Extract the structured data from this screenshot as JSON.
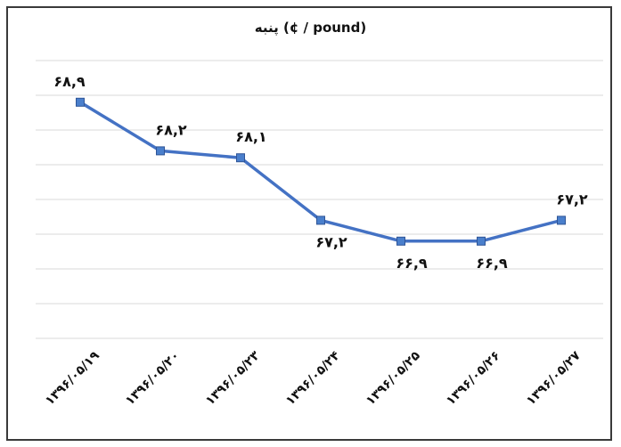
{
  "chart_data": {
    "type": "line",
    "title": "پنبه (¢ / pound)",
    "categories": [
      "۱۳۹۶/۰۵/۱۹",
      "۱۳۹۶/۰۵/۲۰",
      "۱۳۹۶/۰۵/۲۳",
      "۱۳۹۶/۰۵/۲۴",
      "۱۳۹۶/۰۵/۲۵",
      "۱۳۹۶/۰۵/۲۶",
      "۱۳۹۶/۰۵/۲۷"
    ],
    "values": [
      68.9,
      68.2,
      68.1,
      67.2,
      66.9,
      66.9,
      67.2
    ],
    "data_labels": [
      "۶۸,۹",
      "۶۸,۲",
      "۶۸,۱",
      "۶۷,۲",
      "۶۶,۹",
      "۶۶,۹",
      "۶۷,۲"
    ],
    "label_position": [
      "above",
      "above",
      "above",
      "below",
      "below",
      "below",
      "above"
    ],
    "ylim": [
      65.5,
      69.5
    ],
    "grid": true,
    "legend": "none",
    "colors": {
      "line": "#4472C4",
      "marker": "#4A7FCC",
      "grid": "#d9d9d9",
      "frame": "#3a3a3a"
    }
  }
}
